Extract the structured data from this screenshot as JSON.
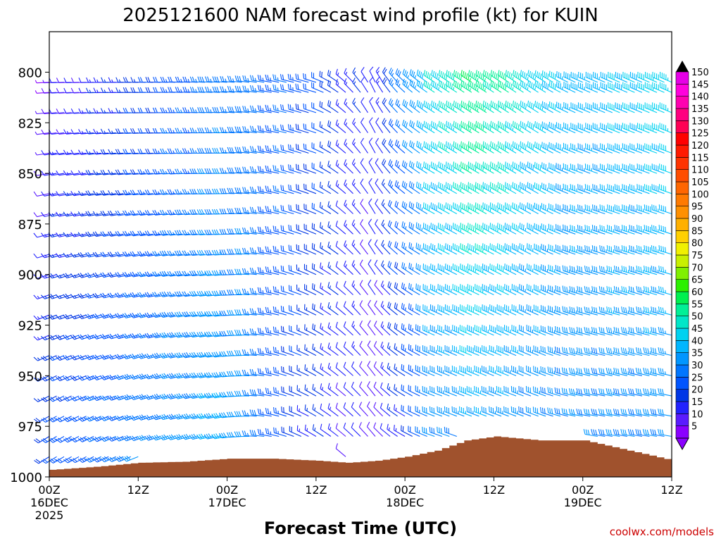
{
  "chart_data": {
    "type": "wind-profile",
    "title": "2025121600 NAM forecast wind profile (kt) for KUIN",
    "xlabel": "Forecast Time (UTC)",
    "ylabel": "",
    "credit": "coolwx.com/models",
    "y_axis": {
      "unit": "hPa",
      "range": [
        1000,
        780
      ],
      "ticks": [
        "800",
        "825",
        "850",
        "875",
        "900",
        "925",
        "950",
        "975",
        "1000"
      ]
    },
    "x_axis": {
      "unit": "hours since 2025-12-16 00Z",
      "range": [
        0,
        84
      ],
      "ticks": [
        {
          "h": 0,
          "label": "00Z",
          "sub": "16DEC",
          "sub2": "2025"
        },
        {
          "h": 12,
          "label": "12Z",
          "sub": "",
          "sub2": ""
        },
        {
          "h": 24,
          "label": "00Z",
          "sub": "17DEC",
          "sub2": ""
        },
        {
          "h": 36,
          "label": "12Z",
          "sub": "",
          "sub2": ""
        },
        {
          "h": 48,
          "label": "00Z",
          "sub": "18DEC",
          "sub2": ""
        },
        {
          "h": 60,
          "label": "12Z",
          "sub": "",
          "sub2": ""
        },
        {
          "h": 72,
          "label": "00Z",
          "sub": "19DEC",
          "sub2": ""
        },
        {
          "h": 84,
          "label": "12Z",
          "sub": "",
          "sub2": ""
        }
      ]
    },
    "surface_pressure": {
      "hours": [
        0,
        6,
        12,
        18,
        24,
        30,
        36,
        40,
        44,
        48,
        52,
        56,
        60,
        66,
        72,
        78,
        84
      ],
      "pressure": [
        996.5,
        995,
        993,
        992.5,
        991,
        991,
        992,
        993,
        992,
        990,
        987,
        982,
        980,
        982,
        982,
        987,
        992
      ]
    },
    "wind_barbs": {
      "units": "kt",
      "levels_hpa": [
        805,
        810,
        820,
        830,
        840,
        850,
        860,
        870,
        880,
        890,
        900,
        910,
        920,
        930,
        940,
        950,
        960,
        970,
        980,
        990
      ],
      "hours_every": 1,
      "hours": [
        0,
        24,
        36,
        44,
        48,
        52,
        58,
        66,
        72,
        84
      ],
      "speed_kt_at_850": [
        10,
        30,
        20,
        10,
        25,
        40,
        50,
        40,
        35,
        40
      ],
      "dir_deg_at_850": [
        260,
        270,
        290,
        330,
        310,
        300,
        300,
        300,
        290,
        290
      ],
      "speed_kt_at_975": [
        20,
        35,
        15,
        8,
        15,
        30,
        35,
        30,
        30,
        30
      ],
      "dir_deg_at_975": [
        240,
        260,
        300,
        320,
        300,
        290,
        290,
        290,
        280,
        280
      ]
    },
    "colorbar": {
      "values": [
        5,
        10,
        15,
        20,
        25,
        30,
        35,
        40,
        45,
        50,
        55,
        60,
        65,
        70,
        75,
        80,
        85,
        90,
        95,
        100,
        105,
        110,
        115,
        120,
        125,
        130,
        135,
        140,
        145,
        150
      ],
      "colors": [
        "#8a00ff",
        "#5a1bff",
        "#2222ff",
        "#0036e6",
        "#0055ff",
        "#0076ff",
        "#0096ff",
        "#00b6ff",
        "#00d2f0",
        "#00e6c8",
        "#00f096",
        "#00f050",
        "#2cf000",
        "#80f000",
        "#c8f000",
        "#f0f000",
        "#ffd000",
        "#ffb000",
        "#ff9000",
        "#ff7a00",
        "#ff6600",
        "#ff4d00",
        "#ff3300",
        "#ff1a00",
        "#ff0000",
        "#ff0055",
        "#ff0080",
        "#ff00b0",
        "#ff00dc",
        "#e600e6"
      ]
    },
    "terrain_color": "#a0522d"
  }
}
